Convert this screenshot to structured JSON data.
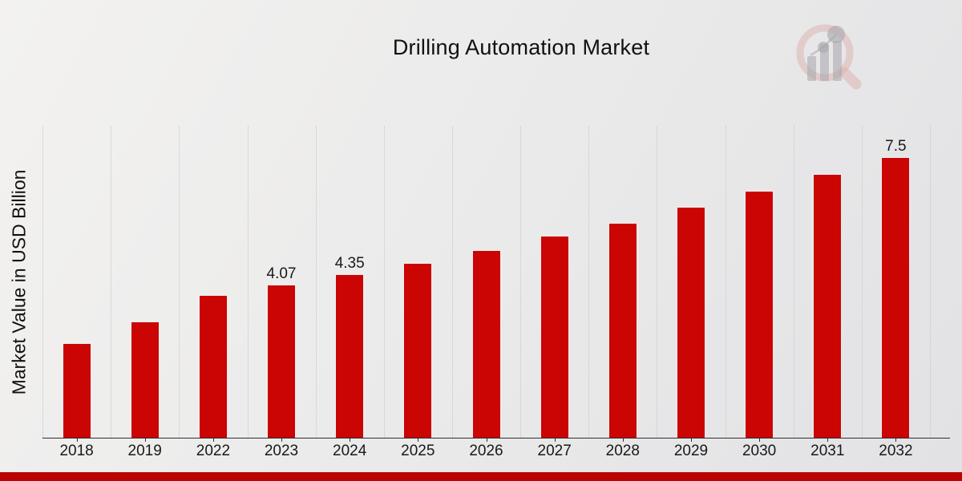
{
  "page": {
    "footer_bar_color": "#b90402"
  },
  "logo": {
    "name": "magnifier-bar-chart-watermark",
    "ring_color": "#dcb2ae",
    "bars_color": "#a6a6ab"
  },
  "chart_data": {
    "type": "bar",
    "title": "Drilling Automation Market",
    "xlabel": "",
    "ylabel": "Market Value in USD Billion",
    "categories": [
      "2018",
      "2019",
      "2022",
      "2023",
      "2024",
      "2025",
      "2026",
      "2027",
      "2028",
      "2029",
      "2030",
      "2031",
      "2032"
    ],
    "values": [
      2.52,
      3.1,
      3.81,
      4.07,
      4.35,
      4.66,
      5.01,
      5.38,
      5.74,
      6.16,
      6.59,
      7.05,
      7.5
    ],
    "bar_labels": [
      "",
      "",
      "",
      "4.07",
      "4.35",
      "",
      "",
      "",
      "",
      "",
      "",
      "",
      "7.5"
    ],
    "ylim": [
      0,
      8.35
    ],
    "bar_color": "#cb0404",
    "grid": "vertical-dotted-between-categories",
    "legend_position": "none"
  }
}
